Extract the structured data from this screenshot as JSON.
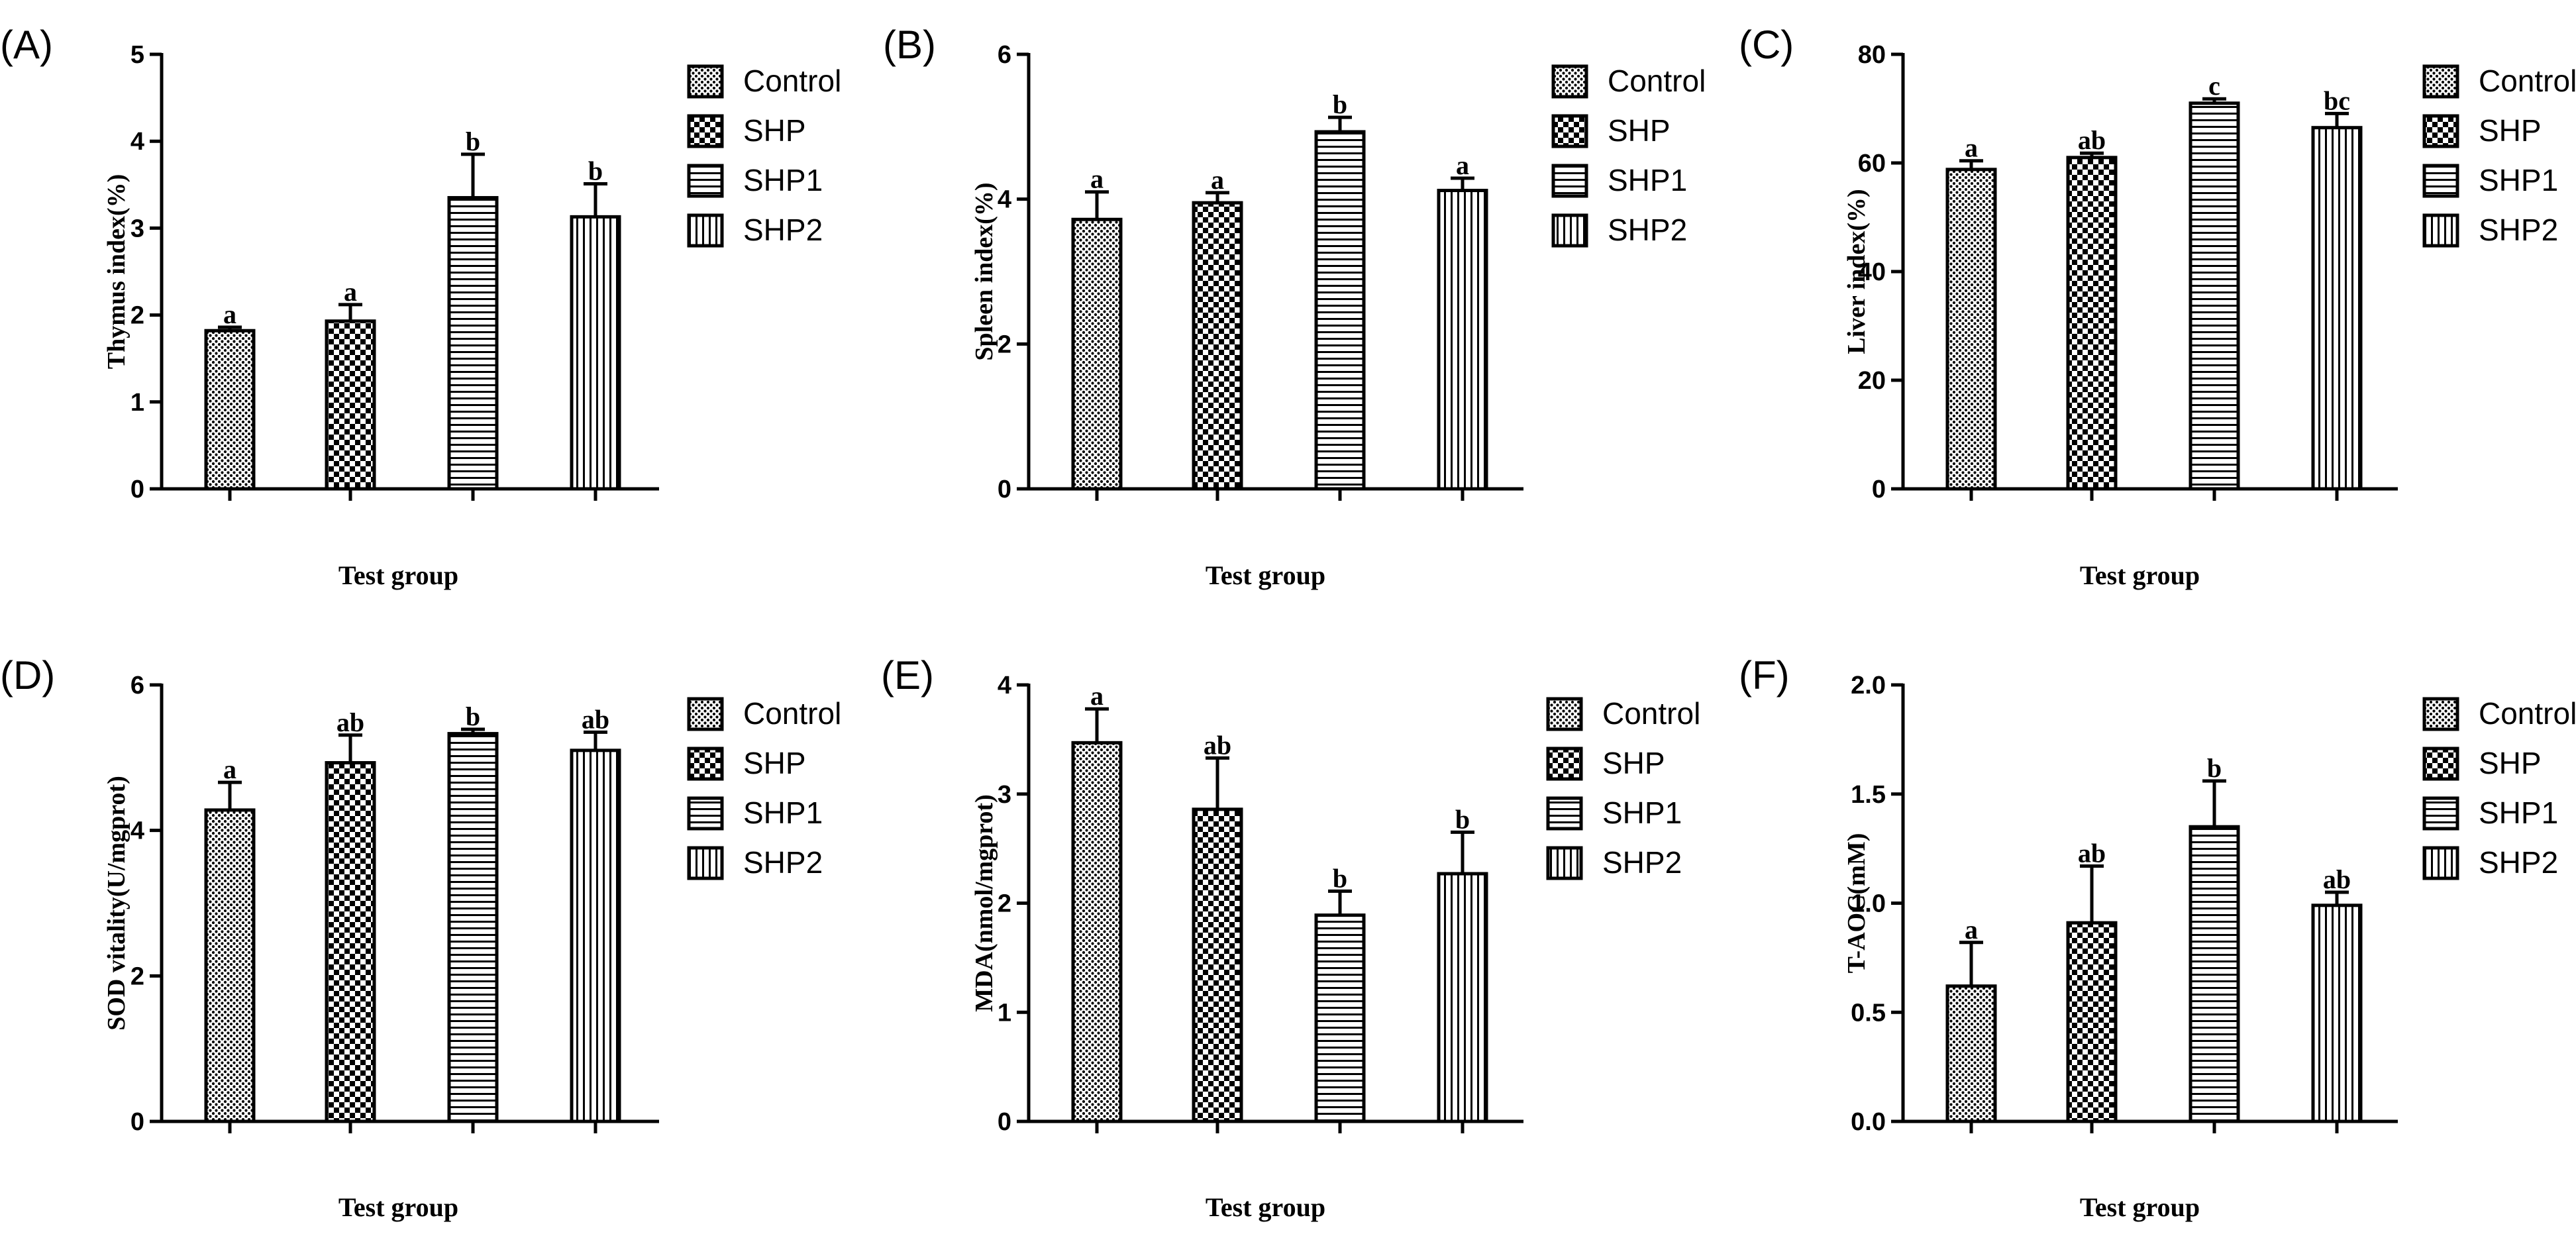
{
  "legend": {
    "items": [
      {
        "label": "Control",
        "pattern": "dots"
      },
      {
        "label": "SHP",
        "pattern": "checker"
      },
      {
        "label": "SHP1",
        "pattern": "hlines"
      },
      {
        "label": "SHP2",
        "pattern": "vlines"
      }
    ]
  },
  "colors": {
    "ink": "#000000",
    "background": "#ffffff"
  },
  "chart_data": [
    {
      "id": "A",
      "panel_label": "(A)",
      "type": "bar",
      "title": "",
      "ylabel": "Thymus index(%)",
      "xlabel": "Test group",
      "ylim": [
        0,
        5
      ],
      "yticks": [
        "0",
        "1",
        "2",
        "3",
        "4",
        "5"
      ],
      "ytick_values": [
        0,
        1,
        2,
        3,
        4,
        5
      ],
      "categories": [
        "Control",
        "SHP",
        "SHP1",
        "SHP2"
      ],
      "values": [
        1.82,
        1.93,
        3.35,
        3.13
      ],
      "errors": [
        0.04,
        0.19,
        0.5,
        0.38
      ],
      "letters": [
        "a",
        "a",
        "b",
        "b"
      ],
      "legend_position": "right",
      "grid": false
    },
    {
      "id": "B",
      "panel_label": "(B)",
      "type": "bar",
      "title": "",
      "ylabel": "Spleen index(%)",
      "xlabel": "Test group",
      "ylim": [
        0,
        6
      ],
      "yticks": [
        "0",
        "2",
        "4",
        "6"
      ],
      "ytick_values": [
        0,
        2,
        4,
        6
      ],
      "categories": [
        "Control",
        "SHP",
        "SHP1",
        "SHP2"
      ],
      "values": [
        3.72,
        3.95,
        4.93,
        4.12
      ],
      "errors": [
        0.38,
        0.14,
        0.2,
        0.17
      ],
      "letters": [
        "a",
        "a",
        "b",
        "a"
      ],
      "legend_position": "right",
      "grid": false
    },
    {
      "id": "C",
      "panel_label": "(C)",
      "type": "bar",
      "title": "",
      "ylabel": "Liver index(%)",
      "xlabel": "Test group",
      "ylim": [
        0,
        80
      ],
      "yticks": [
        "0",
        "20",
        "40",
        "60",
        "80"
      ],
      "ytick_values": [
        0,
        20,
        40,
        60,
        80
      ],
      "categories": [
        "Control",
        "SHP",
        "SHP1",
        "SHP2"
      ],
      "values": [
        58.8,
        61.0,
        71.0,
        66.5
      ],
      "errors": [
        1.6,
        0.8,
        0.8,
        2.6
      ],
      "letters": [
        "a",
        "ab",
        "c",
        "bc"
      ],
      "legend_position": "right",
      "grid": false
    },
    {
      "id": "D",
      "panel_label": "(D)",
      "type": "bar",
      "title": "",
      "ylabel": "SOD vitality(U/mgprot)",
      "xlabel": "Test group",
      "ylim": [
        0,
        6
      ],
      "yticks": [
        "0",
        "2",
        "4",
        "6"
      ],
      "ytick_values": [
        0,
        2,
        4,
        6
      ],
      "categories": [
        "Control",
        "SHP",
        "SHP1",
        "SHP2"
      ],
      "values": [
        4.28,
        4.93,
        5.33,
        5.1
      ],
      "errors": [
        0.38,
        0.38,
        0.06,
        0.25
      ],
      "letters": [
        "a",
        "ab",
        "b",
        "ab"
      ],
      "legend_position": "right",
      "grid": false
    },
    {
      "id": "E",
      "panel_label": "(E)",
      "type": "bar",
      "title": "",
      "ylabel": "MDA(nmol/mgprot)",
      "xlabel": "Test group",
      "ylim": [
        0,
        4
      ],
      "yticks": [
        "0",
        "1",
        "2",
        "3",
        "4"
      ],
      "ytick_values": [
        0,
        1,
        2,
        3,
        4
      ],
      "categories": [
        "Control",
        "SHP",
        "SHP1",
        "SHP2"
      ],
      "values": [
        3.47,
        2.86,
        1.89,
        2.27
      ],
      "errors": [
        0.31,
        0.47,
        0.22,
        0.38
      ],
      "letters": [
        "a",
        "ab",
        "b",
        "b"
      ],
      "legend_position": "right",
      "grid": false
    },
    {
      "id": "F",
      "panel_label": "(F)",
      "type": "bar",
      "title": "",
      "ylabel": "T-AOC(mM)",
      "xlabel": "Test group",
      "ylim": [
        0,
        2.0
      ],
      "yticks": [
        "0.0",
        "0.5",
        "1.0",
        "1.5",
        "2.0"
      ],
      "ytick_values": [
        0,
        0.5,
        1.0,
        1.5,
        2.0
      ],
      "categories": [
        "Control",
        "SHP",
        "SHP1",
        "SHP2"
      ],
      "values": [
        0.62,
        0.91,
        1.35,
        0.99
      ],
      "errors": [
        0.2,
        0.26,
        0.21,
        0.06
      ],
      "letters": [
        "a",
        "ab",
        "b",
        "ab"
      ],
      "legend_position": "right",
      "grid": false
    }
  ]
}
